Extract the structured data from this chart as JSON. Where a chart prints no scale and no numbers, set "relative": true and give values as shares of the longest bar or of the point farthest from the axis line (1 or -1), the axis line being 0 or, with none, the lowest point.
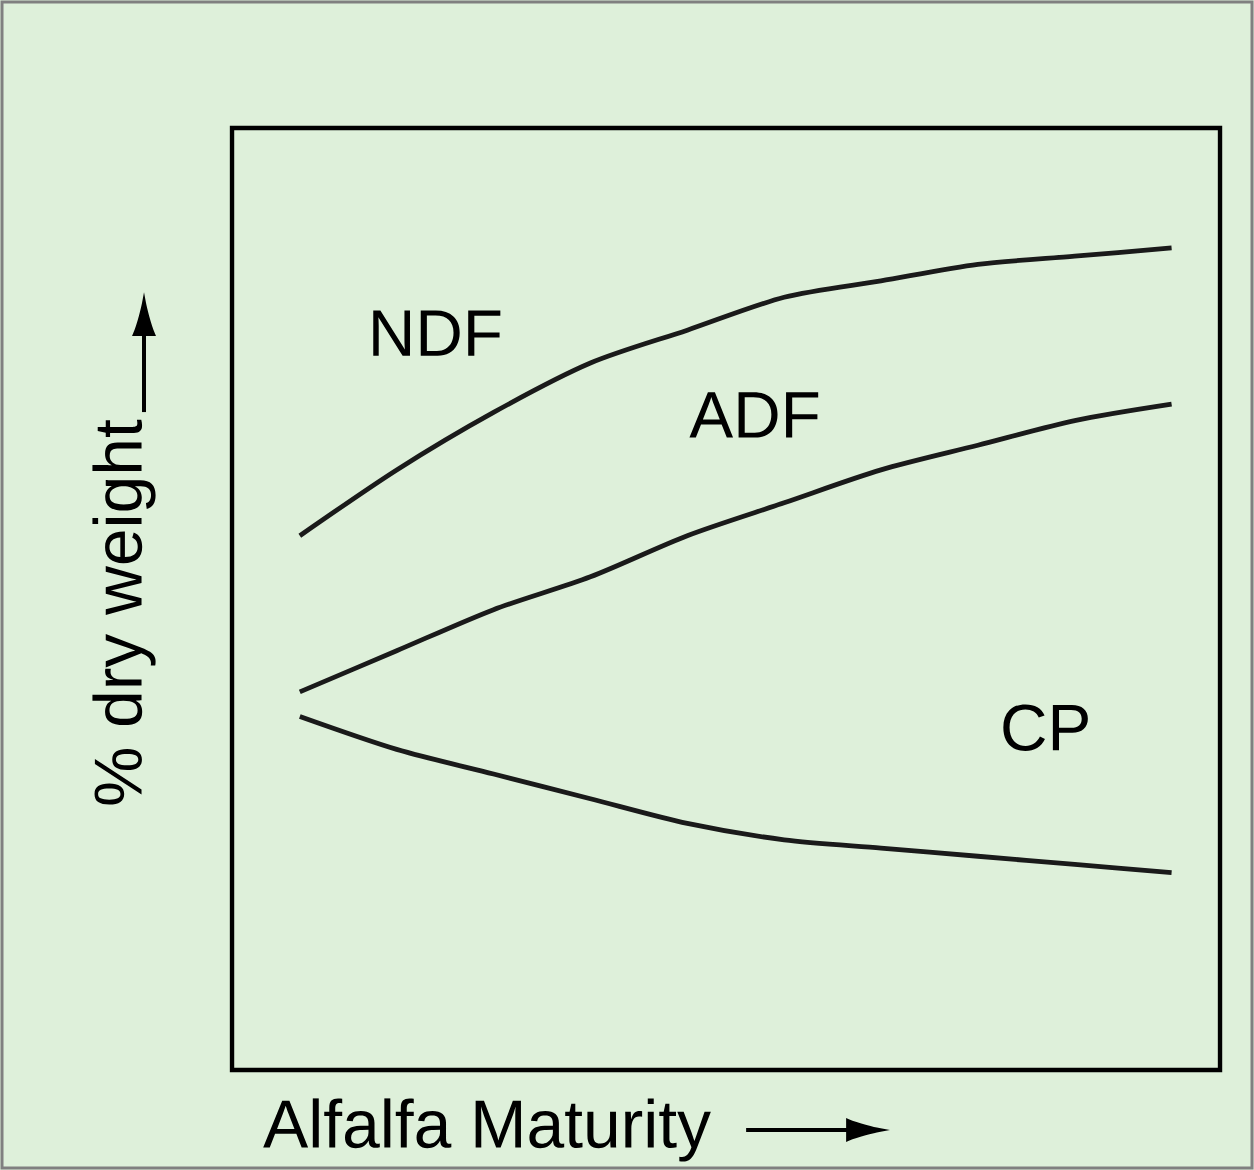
{
  "chart_data": {
    "type": "line",
    "relative": true,
    "xlabel": "Alfalfa Maturity",
    "ylabel": "% dry weight",
    "categories": [
      null,
      null,
      null,
      null,
      null,
      null,
      null,
      null,
      null,
      null
    ],
    "series": [
      {
        "name": "NDF",
        "color": "#1a1a1a",
        "values": [
          0.65,
          0.73,
          0.8,
          0.86,
          0.9,
          0.94,
          0.96,
          0.98,
          0.99,
          1.0
        ]
      },
      {
        "name": "ADF",
        "color": "#1a1a1a",
        "values": [
          0.46,
          0.51,
          0.56,
          0.6,
          0.65,
          0.69,
          0.73,
          0.76,
          0.79,
          0.81
        ]
      },
      {
        "name": "CP",
        "color": "#1a1a1a",
        "values": [
          0.43,
          0.39,
          0.36,
          0.33,
          0.3,
          0.28,
          0.27,
          0.26,
          0.25,
          0.24
        ]
      }
    ],
    "marker": "none",
    "line_style": "solid"
  }
}
